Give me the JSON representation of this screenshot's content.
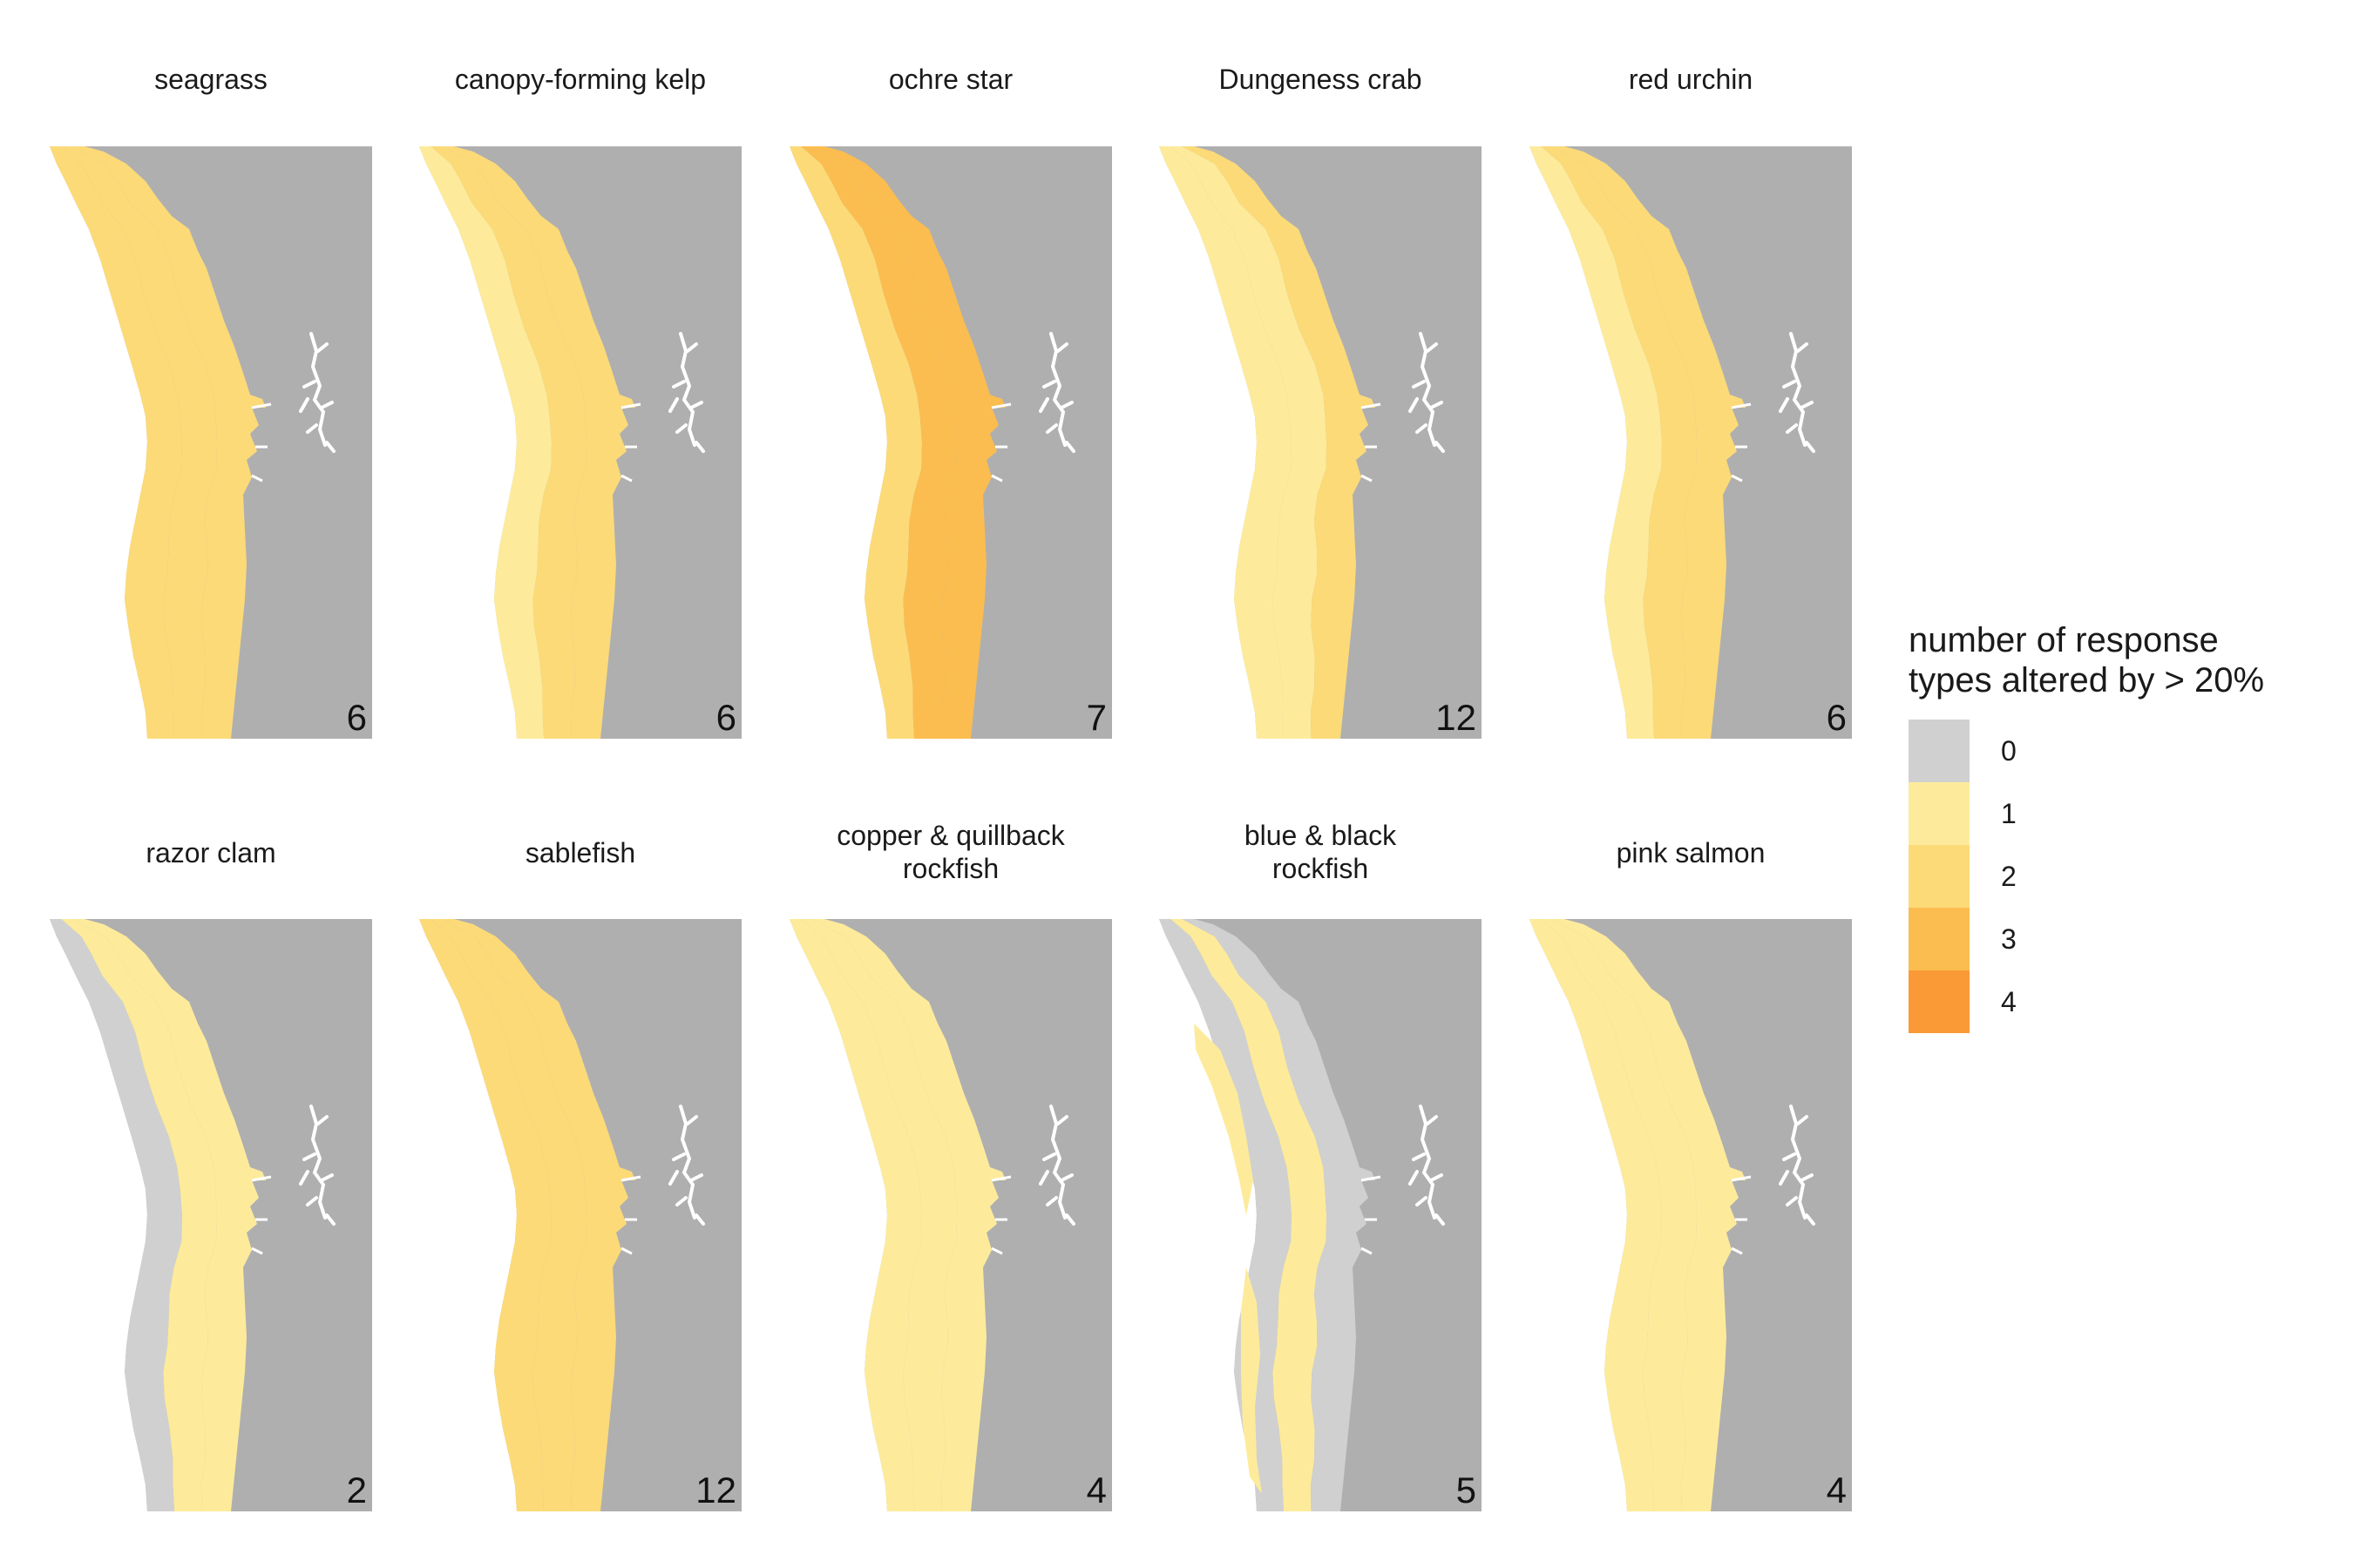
{
  "panels": [
    {
      "title": "seagrass",
      "count": "6",
      "pattern": "bands",
      "fills": [
        2,
        2,
        2
      ]
    },
    {
      "title": "canopy-forming kelp",
      "count": "6",
      "pattern": "bands",
      "fills": [
        1,
        2,
        2
      ]
    },
    {
      "title": "ochre star",
      "count": "7",
      "pattern": "bands",
      "fills": [
        2,
        3,
        3
      ]
    },
    {
      "title": "Dungeness crab",
      "count": "12",
      "pattern": "bands",
      "fills": [
        1,
        1,
        2
      ]
    },
    {
      "title": "red urchin",
      "count": "6",
      "pattern": "bands",
      "fills": [
        1,
        2,
        2
      ]
    },
    {
      "title": "razor clam",
      "count": "2",
      "pattern": "gray-edge",
      "fills": [
        0,
        1,
        1
      ]
    },
    {
      "title": "sablefish",
      "count": "12",
      "pattern": "bands",
      "fills": [
        2,
        2,
        2
      ]
    },
    {
      "title": "copper & quillback\nrockfish",
      "count": "4",
      "pattern": "gray-edge",
      "fills": [
        1,
        1,
        1
      ]
    },
    {
      "title": "blue & black\nrockfish",
      "count": "5",
      "pattern": "patchy",
      "fills": [
        0,
        1,
        0
      ]
    },
    {
      "title": "pink salmon",
      "count": "4",
      "pattern": "bands",
      "fills": [
        1,
        1,
        1
      ]
    }
  ],
  "legend": {
    "title": "number of response\ntypes altered by > 20%",
    "levels": [
      {
        "label": "0",
        "color": "#d0d0d0"
      },
      {
        "label": "1",
        "color": "#fdeb9b"
      },
      {
        "label": "2",
        "color": "#fcda78"
      },
      {
        "label": "3",
        "color": "#fbbd50"
      },
      {
        "label": "4",
        "color": "#f99a36"
      }
    ]
  },
  "colors": {
    "land": "#afafaf",
    "lakes": "#ffffff"
  }
}
